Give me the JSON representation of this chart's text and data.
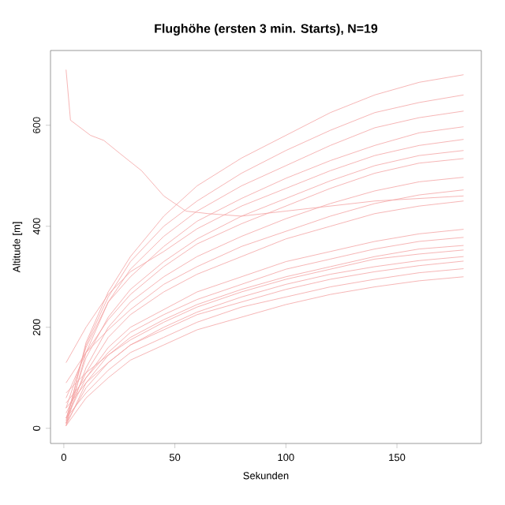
{
  "chart_data": {
    "type": "line",
    "title": "Flughöhe (ersten 3 min. Starts), N=19",
    "xlabel": "Sekunden",
    "ylabel": "Altitude [m]",
    "xlim": [
      -6,
      188
    ],
    "ylim": [
      -30,
      748
    ],
    "xticks": [
      0,
      50,
      100,
      150
    ],
    "yticks": [
      0,
      200,
      400,
      600
    ],
    "marker": "none",
    "line_style": "solid",
    "x": [
      1,
      10,
      20,
      30,
      45,
      60,
      80,
      100,
      120,
      140,
      160,
      180
    ],
    "series": [
      {
        "color": "#f4a3a3",
        "values": [
          10,
          170,
          270,
          340,
          420,
          480,
          535,
          580,
          625,
          660,
          685,
          700
        ]
      },
      {
        "color": "#f4a3a3",
        "values": [
          15,
          165,
          260,
          330,
          400,
          450,
          505,
          550,
          590,
          625,
          645,
          660
        ]
      },
      {
        "color": "#f4a3a3",
        "values": [
          5,
          150,
          250,
          315,
          380,
          430,
          480,
          520,
          560,
          595,
          615,
          628
        ]
      },
      {
        "color": "#f4a3a3",
        "values": [
          40,
          160,
          250,
          300,
          360,
          410,
          455,
          495,
          530,
          560,
          585,
          597
        ]
      },
      {
        "color": "#f4a3a3",
        "values": [
          130,
          200,
          265,
          310,
          350,
          395,
          440,
          475,
          510,
          540,
          560,
          572
        ]
      },
      {
        "color": "#f4a3a3",
        "values": [
          20,
          140,
          220,
          275,
          330,
          375,
          420,
          455,
          490,
          520,
          540,
          550
        ]
      },
      {
        "color": "#f4a3a3",
        "values": [
          60,
          150,
          215,
          265,
          320,
          365,
          405,
          440,
          475,
          505,
          525,
          534
        ]
      },
      {
        "color": "#f4a3a3",
        "values": [
          10,
          120,
          200,
          250,
          300,
          340,
          380,
          415,
          445,
          470,
          488,
          497
        ]
      },
      {
        "color": "#f4a3a3",
        "values": [
          90,
          150,
          195,
          235,
          285,
          320,
          360,
          390,
          420,
          445,
          462,
          472
        ]
      },
      {
        "color": "#f4a3a3",
        "values": [
          30,
          110,
          180,
          225,
          270,
          305,
          340,
          375,
          400,
          425,
          440,
          450
        ]
      },
      {
        "color": "#f4a3a3",
        "values": [
          20,
          100,
          160,
          200,
          235,
          270,
          300,
          330,
          350,
          370,
          385,
          394
        ]
      },
      {
        "color": "#f4a3a3",
        "values": [
          50,
          100,
          150,
          190,
          225,
          255,
          285,
          315,
          335,
          355,
          370,
          378
        ]
      },
      {
        "color": "#f4a3a3",
        "values": [
          5,
          90,
          145,
          180,
          215,
          245,
          275,
          300,
          320,
          340,
          355,
          362
        ]
      },
      {
        "color": "#f4a3a3",
        "values": [
          70,
          110,
          145,
          175,
          210,
          240,
          270,
          295,
          315,
          335,
          345,
          353
        ]
      },
      {
        "color": "#f4a3a3",
        "values": [
          10,
          80,
          130,
          165,
          200,
          230,
          260,
          285,
          305,
          320,
          332,
          340
        ]
      },
      {
        "color": "#f4a3a3",
        "values": [
          40,
          90,
          130,
          165,
          195,
          225,
          250,
          275,
          295,
          310,
          322,
          331
        ]
      },
      {
        "color": "#f4a3a3",
        "values": [
          20,
          70,
          115,
          150,
          180,
          210,
          240,
          260,
          280,
          295,
          308,
          316
        ]
      },
      {
        "color": "#f4a3a3",
        "values": [
          5,
          60,
          100,
          135,
          165,
          195,
          220,
          245,
          265,
          280,
          292,
          300
        ]
      },
      {
        "color": "#f4a3a3",
        "x": [
          1,
          3,
          6,
          12,
          18,
          25,
          35,
          45,
          55,
          65,
          80,
          100,
          120,
          140,
          160,
          180
        ],
        "values": [
          710,
          610,
          600,
          580,
          570,
          545,
          510,
          460,
          430,
          425,
          420,
          430,
          440,
          450,
          455,
          460
        ]
      }
    ]
  }
}
